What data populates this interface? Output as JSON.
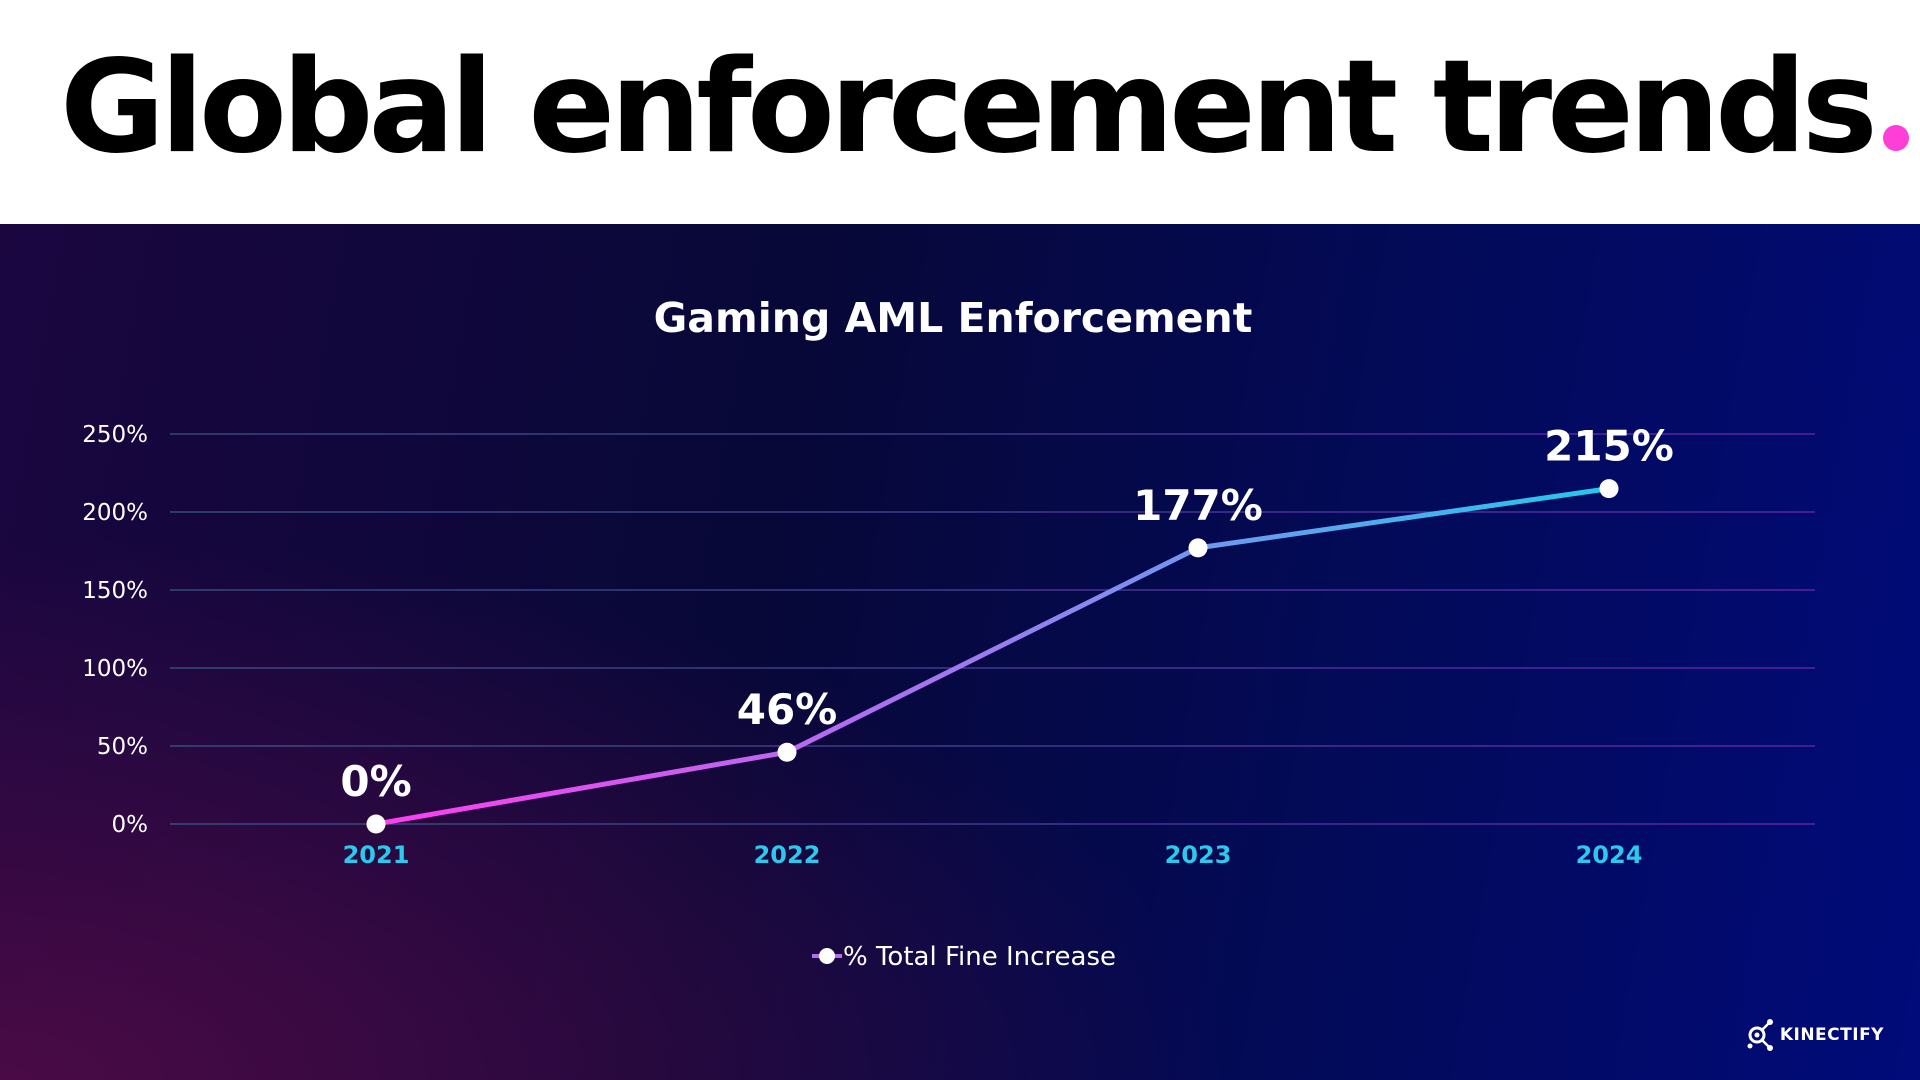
{
  "header": {
    "title": "Global enforcement trends",
    "title_dot": ".",
    "dot_color": "#ff3ed8"
  },
  "chart_data": {
    "type": "line",
    "title": "Gaming AML Enforcement",
    "categories": [
      "2021",
      "2022",
      "2023",
      "2024"
    ],
    "series": [
      {
        "name": "% Total Fine Increase",
        "values": [
          0,
          46,
          177,
          215
        ]
      }
    ],
    "data_labels": [
      "0%",
      "46%",
      "177%",
      "215%"
    ],
    "y_ticks": [
      {
        "value": 0,
        "label": "0%"
      },
      {
        "value": 50,
        "label": "50%"
      },
      {
        "value": 100,
        "label": "100%"
      },
      {
        "value": 150,
        "label": "150%"
      },
      {
        "value": 200,
        "label": "200%"
      },
      {
        "value": 250,
        "label": "250%"
      }
    ],
    "ylim": [
      0,
      250
    ],
    "xlabel": "",
    "ylabel": "",
    "grid": true,
    "legend": "bottom",
    "line_start_color": "#ff3ef0",
    "line_end_color": "#22c9ec",
    "xtick_color": "#2cc9ef"
  },
  "brand": {
    "name": "KINECTIFY"
  }
}
